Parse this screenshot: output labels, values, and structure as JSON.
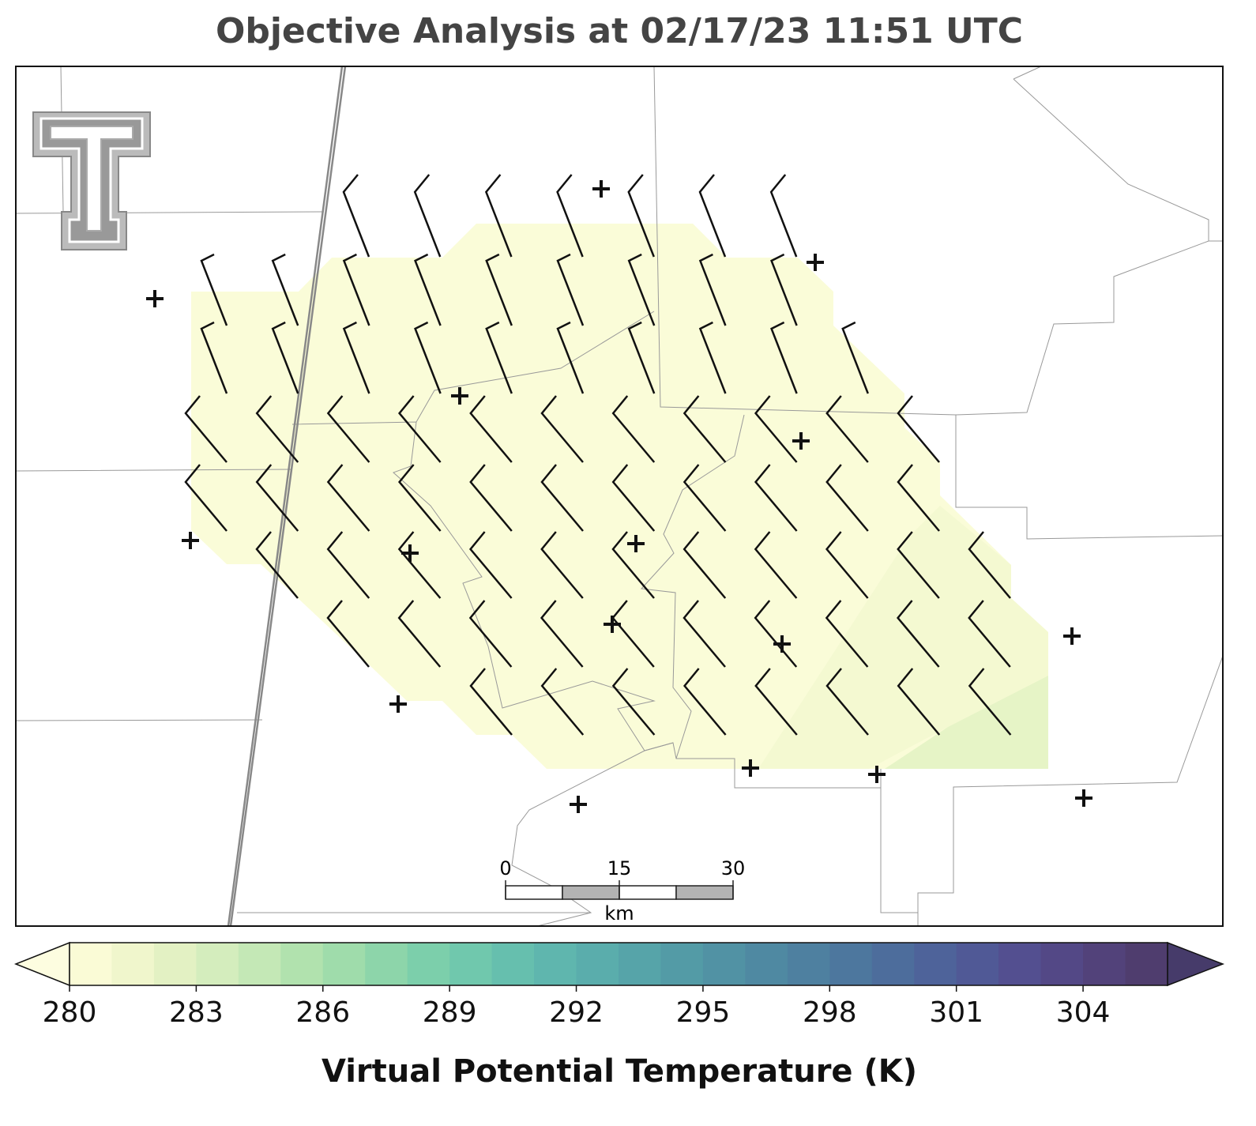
{
  "title": "Objective Analysis at 02/17/23 11:51 UTC",
  "scale_bar": {
    "ticks": [
      0,
      15,
      30
    ],
    "unit": "km"
  },
  "colorbar": {
    "label": "Virtual Potential Temperature (K)",
    "lim": [
      280,
      306
    ],
    "ticks": [
      280,
      283,
      286,
      289,
      292,
      295,
      298,
      301,
      304
    ],
    "colors": [
      "#fafbd6",
      "#f0f6cc",
      "#e3f1c3",
      "#d4edbd",
      "#c4e8b6",
      "#b1e2ae",
      "#9fdcab",
      "#8dd5aa",
      "#7ccfab",
      "#70c8ad",
      "#66bfae",
      "#5fb6ae",
      "#5aadac",
      "#56a4a9",
      "#539ba6",
      "#5192a4",
      "#4f89a2",
      "#4e80a0",
      "#4d779e",
      "#4d6d9c",
      "#4e639a",
      "#505996",
      "#534f90",
      "#534886",
      "#52427a",
      "#4f3d6e"
    ],
    "extend_colors": [
      "#fdfde0",
      "#463b6a"
    ]
  }
}
